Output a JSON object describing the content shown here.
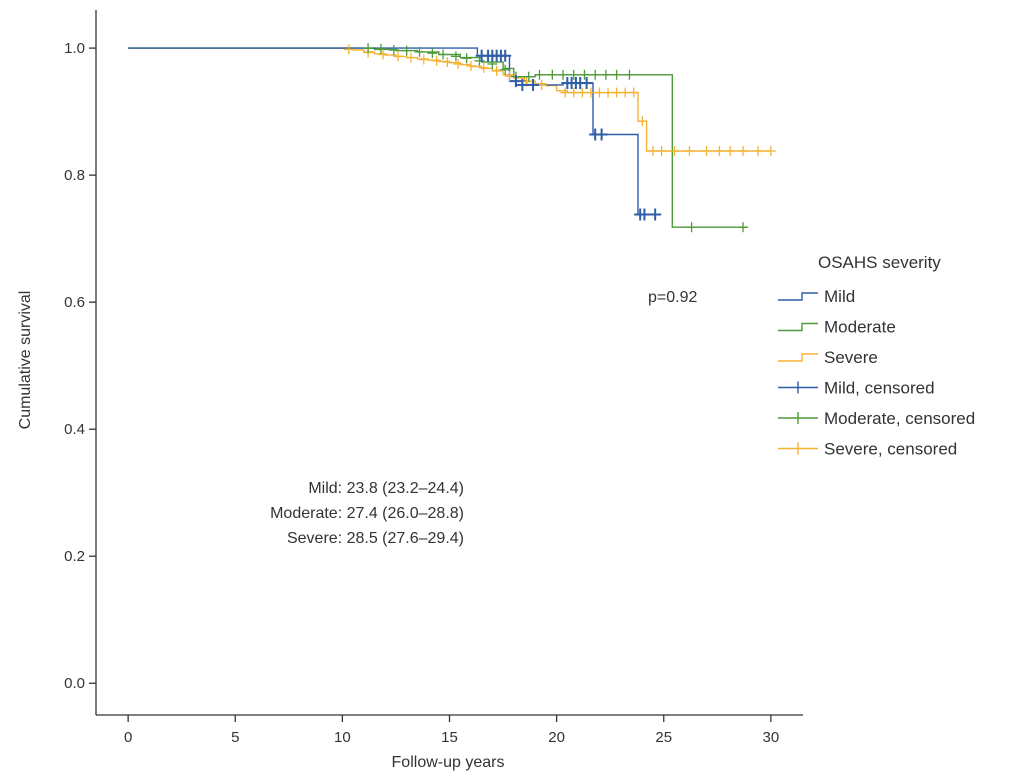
{
  "chart_data": {
    "type": "line",
    "subtype": "kaplan-meier",
    "xlabel": "Follow-up years",
    "ylabel": "Cumulative survival",
    "xlim": [
      -1.5,
      31.5
    ],
    "ylim": [
      -0.05,
      1.06
    ],
    "xticks": [
      "0",
      "5",
      "10",
      "15",
      "20",
      "25",
      "30"
    ],
    "yticks": [
      "0.0",
      "0.2",
      "0.4",
      "0.6",
      "0.8",
      "1.0"
    ],
    "grid": false,
    "legend": {
      "title": "OSAHS severity",
      "position": "right",
      "entries": [
        {
          "label": "Mild",
          "series": "Mild",
          "kind": "line"
        },
        {
          "label": "Moderate",
          "series": "Moderate",
          "kind": "line"
        },
        {
          "label": "Severe",
          "series": "Severe",
          "kind": "line"
        },
        {
          "label": "Mild, censored",
          "series": "Mild",
          "kind": "censored"
        },
        {
          "label": "Moderate, censored",
          "series": "Moderate",
          "kind": "censored"
        },
        {
          "label": "Severe, censored",
          "series": "Severe",
          "kind": "censored"
        }
      ]
    },
    "annotations": {
      "p_value": "p=0.92",
      "medians": [
        "Mild: 23.8 (23.2–24.4)",
        "Moderate: 27.4 (26.0–28.8)",
        "Severe: 28.5 (27.6–29.4)"
      ]
    },
    "series": [
      {
        "name": "Severe",
        "color": "#f5b335",
        "steps": [
          [
            0,
            1.0
          ],
          [
            9.8,
            1.0
          ],
          [
            10.5,
            0.997
          ],
          [
            11.0,
            0.994
          ],
          [
            11.5,
            0.991
          ],
          [
            12.0,
            0.989
          ],
          [
            12.5,
            0.987
          ],
          [
            13.0,
            0.985
          ],
          [
            13.5,
            0.983
          ],
          [
            14.0,
            0.981
          ],
          [
            14.5,
            0.979
          ],
          [
            15.0,
            0.977
          ],
          [
            15.5,
            0.974
          ],
          [
            16.0,
            0.971
          ],
          [
            16.5,
            0.968
          ],
          [
            17.0,
            0.965
          ],
          [
            17.5,
            0.958
          ],
          [
            18.0,
            0.953
          ],
          [
            18.5,
            0.948
          ],
          [
            19.0,
            0.944
          ],
          [
            19.5,
            0.941
          ],
          [
            20.0,
            0.933
          ],
          [
            20.5,
            0.93
          ],
          [
            23.8,
            0.885
          ],
          [
            24.2,
            0.838
          ],
          [
            30.0,
            0.838
          ]
        ],
        "end": 30.0,
        "censored": [
          [
            10.3,
            0.998
          ],
          [
            11.2,
            0.993
          ],
          [
            11.9,
            0.99
          ],
          [
            12.6,
            0.987
          ],
          [
            13.2,
            0.985
          ],
          [
            13.8,
            0.982
          ],
          [
            14.4,
            0.98
          ],
          [
            14.9,
            0.978
          ],
          [
            15.4,
            0.975
          ],
          [
            16.0,
            0.972
          ],
          [
            16.6,
            0.969
          ],
          [
            17.2,
            0.964
          ],
          [
            17.8,
            0.956
          ],
          [
            18.6,
            0.947
          ],
          [
            19.3,
            0.942
          ],
          [
            20.4,
            0.93
          ],
          [
            20.8,
            0.93
          ],
          [
            21.2,
            0.93
          ],
          [
            21.6,
            0.93
          ],
          [
            22.0,
            0.93
          ],
          [
            22.4,
            0.93
          ],
          [
            22.8,
            0.93
          ],
          [
            23.2,
            0.93
          ],
          [
            23.6,
            0.93
          ],
          [
            24.0,
            0.885
          ],
          [
            24.5,
            0.838
          ],
          [
            24.9,
            0.838
          ],
          [
            25.5,
            0.838
          ],
          [
            26.2,
            0.838
          ],
          [
            27.0,
            0.838
          ],
          [
            27.6,
            0.838
          ],
          [
            28.1,
            0.838
          ],
          [
            28.7,
            0.838
          ],
          [
            29.4,
            0.838
          ],
          [
            30.0,
            0.838
          ]
        ]
      },
      {
        "name": "Moderate",
        "color": "#4f9a3a",
        "steps": [
          [
            0,
            1.0
          ],
          [
            11.0,
            1.0
          ],
          [
            11.5,
            0.998
          ],
          [
            12.5,
            0.996
          ],
          [
            13.5,
            0.994
          ],
          [
            14.5,
            0.99
          ],
          [
            15.5,
            0.985
          ],
          [
            16.5,
            0.978
          ],
          [
            17.5,
            0.968
          ],
          [
            18.0,
            0.955
          ],
          [
            19.0,
            0.958
          ],
          [
            25.4,
            0.958
          ],
          [
            25.4,
            0.718
          ],
          [
            28.9,
            0.718
          ]
        ],
        "end": 28.9,
        "censored": [
          [
            11.2,
            1.0
          ],
          [
            11.8,
            0.999
          ],
          [
            12.4,
            0.997
          ],
          [
            13.0,
            0.996
          ],
          [
            13.6,
            0.994
          ],
          [
            14.2,
            0.992
          ],
          [
            14.7,
            0.99
          ],
          [
            15.3,
            0.987
          ],
          [
            15.8,
            0.984
          ],
          [
            16.4,
            0.98
          ],
          [
            17.0,
            0.975
          ],
          [
            17.6,
            0.966
          ],
          [
            18.1,
            0.955
          ],
          [
            18.7,
            0.955
          ],
          [
            19.2,
            0.958
          ],
          [
            19.8,
            0.958
          ],
          [
            20.3,
            0.958
          ],
          [
            20.8,
            0.958
          ],
          [
            21.3,
            0.958
          ],
          [
            21.8,
            0.958
          ],
          [
            22.3,
            0.958
          ],
          [
            22.8,
            0.958
          ],
          [
            23.4,
            0.958
          ],
          [
            26.3,
            0.718
          ],
          [
            28.7,
            0.718
          ]
        ]
      },
      {
        "name": "Mild",
        "color": "#2e5ea7",
        "steps": [
          [
            0,
            1.0
          ],
          [
            16.3,
            1.0
          ],
          [
            16.3,
            0.988
          ],
          [
            17.8,
            0.988
          ],
          [
            17.8,
            0.948
          ],
          [
            18.6,
            0.948
          ],
          [
            18.6,
            0.942
          ],
          [
            20.0,
            0.942
          ],
          [
            20.3,
            0.945
          ],
          [
            21.7,
            0.945
          ],
          [
            21.7,
            0.864
          ],
          [
            23.8,
            0.864
          ],
          [
            23.8,
            0.738
          ],
          [
            24.6,
            0.738
          ]
        ],
        "end": 24.6,
        "censored": [
          [
            16.5,
            0.988
          ],
          [
            16.8,
            0.988
          ],
          [
            17.0,
            0.988
          ],
          [
            17.2,
            0.988
          ],
          [
            17.4,
            0.988
          ],
          [
            17.6,
            0.988
          ],
          [
            18.1,
            0.948
          ],
          [
            18.4,
            0.942
          ],
          [
            18.9,
            0.942
          ],
          [
            20.5,
            0.945
          ],
          [
            20.7,
            0.945
          ],
          [
            20.9,
            0.945
          ],
          [
            21.1,
            0.945
          ],
          [
            21.4,
            0.945
          ],
          [
            21.8,
            0.864
          ],
          [
            22.1,
            0.864
          ],
          [
            23.9,
            0.738
          ],
          [
            24.1,
            0.738
          ],
          [
            24.6,
            0.738
          ]
        ]
      }
    ]
  }
}
